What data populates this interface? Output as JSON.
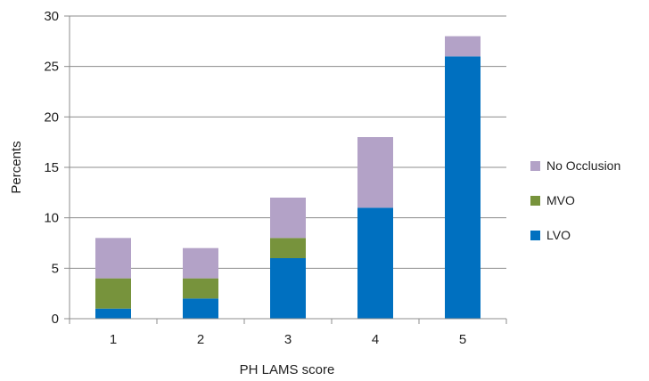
{
  "chart_data": {
    "type": "bar",
    "stacked": true,
    "title": "",
    "xlabel": "PH LAMS score",
    "ylabel": "Percents",
    "categories": [
      "1",
      "2",
      "3",
      "4",
      "5"
    ],
    "ylim": [
      0,
      30
    ],
    "yticks": [
      "0",
      "5",
      "10",
      "15",
      "20",
      "25",
      "30"
    ],
    "grid": true,
    "legend_position": "right",
    "series": [
      {
        "name": "LVO",
        "color": "#0070c0",
        "values": [
          1,
          2,
          6,
          11,
          26
        ]
      },
      {
        "name": "MVO",
        "color": "#77933c",
        "values": [
          3,
          2,
          2,
          0,
          0
        ]
      },
      {
        "name": "No Occlusion",
        "color": "#b3a2c7",
        "values": [
          4,
          3,
          4,
          7,
          2
        ]
      }
    ],
    "legend_order": [
      "No Occlusion",
      "MVO",
      "LVO"
    ]
  }
}
